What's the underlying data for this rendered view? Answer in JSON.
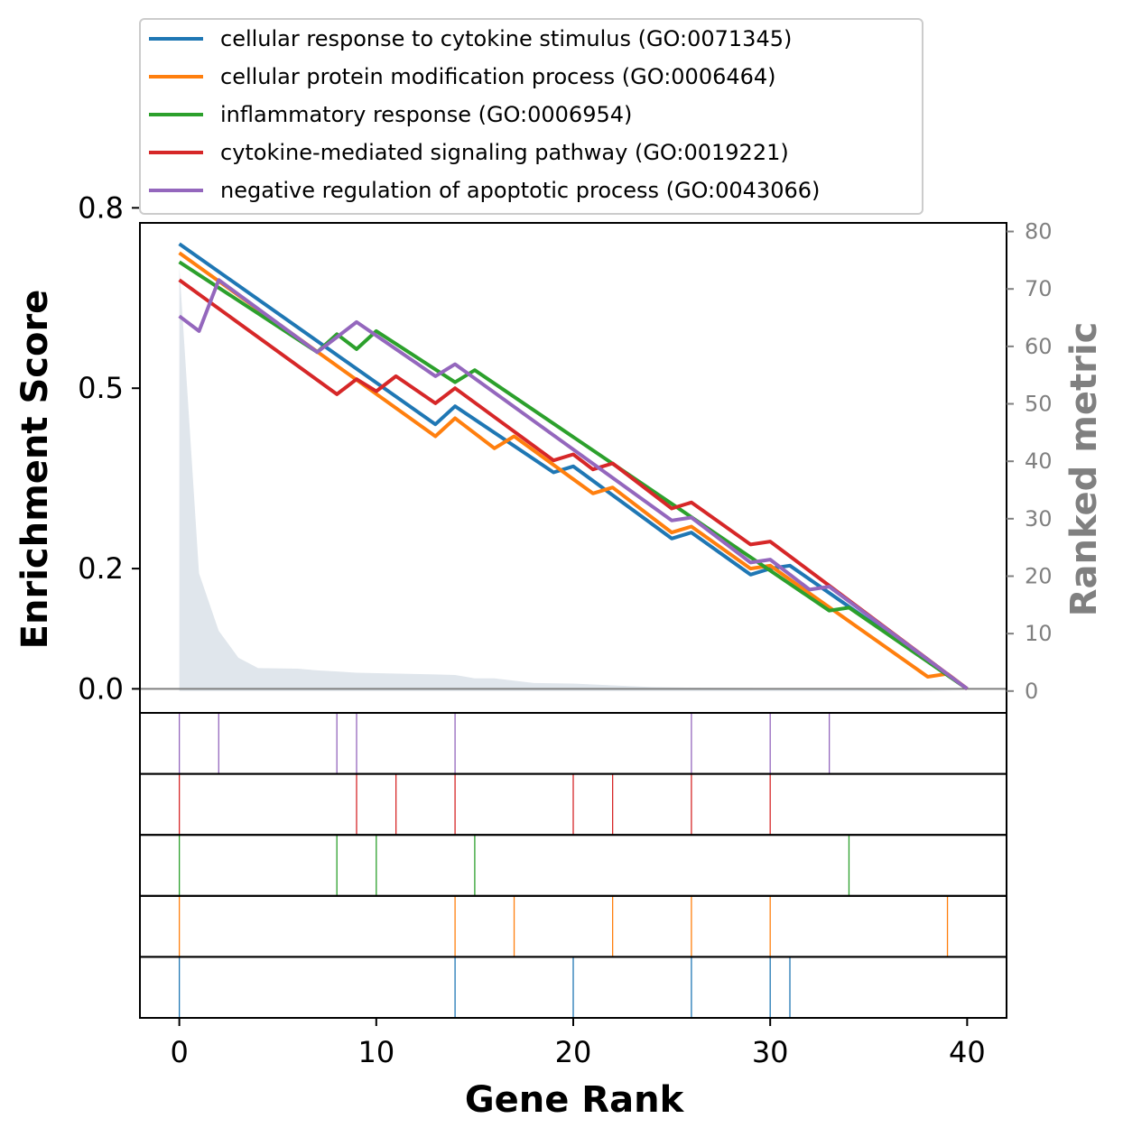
{
  "chart_data": {
    "type": "line",
    "xlabel": "Gene Rank",
    "ylabel": "Enrichment Score",
    "y2label": "Ranked metric",
    "xlim": [
      -2,
      42
    ],
    "ylim": [
      -0.04,
      0.775
    ],
    "y2lim": [
      -3.8,
      81.5
    ],
    "x_ticks": [
      0,
      10,
      20,
      30,
      40
    ],
    "y_ticks": [
      0.0,
      0.2,
      0.5,
      0.8
    ],
    "y_tick_labels": [
      "0.0",
      "0.2",
      "0.5",
      "0.8"
    ],
    "y2_ticks": [
      0,
      10,
      20,
      30,
      40,
      50,
      60,
      70,
      80
    ],
    "legend_position": "above plot",
    "grid": false,
    "series": [
      {
        "name": "cellular response to cytokine stimulus (GO:0071345)",
        "color": "#1f77b4",
        "hits": [
          0,
          14,
          20,
          26,
          30,
          31
        ],
        "es": [
          [
            0,
            0.74
          ],
          [
            13,
            0.44
          ],
          [
            14,
            0.47
          ],
          [
            19,
            0.36
          ],
          [
            20,
            0.37
          ],
          [
            25,
            0.25
          ],
          [
            26,
            0.26
          ],
          [
            29,
            0.19
          ],
          [
            30,
            0.2
          ],
          [
            31,
            0.205
          ],
          [
            40,
            0.0
          ]
        ]
      },
      {
        "name": "cellular protein modification process (GO:0006464)",
        "color": "#ff7f0e",
        "hits": [
          0,
          14,
          17,
          22,
          26,
          30,
          39
        ],
        "es": [
          [
            0,
            0.725
          ],
          [
            13,
            0.42
          ],
          [
            14,
            0.45
          ],
          [
            16,
            0.4
          ],
          [
            17,
            0.42
          ],
          [
            21,
            0.325
          ],
          [
            22,
            0.335
          ],
          [
            25,
            0.26
          ],
          [
            26,
            0.27
          ],
          [
            29,
            0.2
          ],
          [
            30,
            0.205
          ],
          [
            38,
            0.02
          ],
          [
            39,
            0.025
          ],
          [
            40,
            0.0
          ]
        ]
      },
      {
        "name": "inflammatory response (GO:0006954)",
        "color": "#2ca02c",
        "hits": [
          0,
          8,
          10,
          15,
          34
        ],
        "es": [
          [
            0,
            0.71
          ],
          [
            7,
            0.56
          ],
          [
            8,
            0.59
          ],
          [
            9,
            0.565
          ],
          [
            10,
            0.595
          ],
          [
            14,
            0.51
          ],
          [
            15,
            0.53
          ],
          [
            33,
            0.13
          ],
          [
            34,
            0.135
          ],
          [
            40,
            0.0
          ]
        ]
      },
      {
        "name": "cytokine-mediated signaling pathway (GO:0019221)",
        "color": "#d62728",
        "hits": [
          0,
          9,
          11,
          14,
          20,
          22,
          26,
          30
        ],
        "es": [
          [
            0,
            0.68
          ],
          [
            8,
            0.49
          ],
          [
            9,
            0.515
          ],
          [
            10,
            0.495
          ],
          [
            11,
            0.52
          ],
          [
            13,
            0.475
          ],
          [
            14,
            0.5
          ],
          [
            19,
            0.38
          ],
          [
            20,
            0.39
          ],
          [
            21,
            0.365
          ],
          [
            22,
            0.375
          ],
          [
            25,
            0.3
          ],
          [
            26,
            0.31
          ],
          [
            29,
            0.24
          ],
          [
            30,
            0.245
          ],
          [
            40,
            0.0
          ]
        ]
      },
      {
        "name": "negative regulation of apoptotic process (GO:0043066)",
        "color": "#9467bd",
        "hits": [
          0,
          2,
          8,
          9,
          14,
          26,
          30,
          33
        ],
        "es": [
          [
            0,
            0.62
          ],
          [
            1,
            0.595
          ],
          [
            2,
            0.68
          ],
          [
            7,
            0.56
          ],
          [
            8,
            0.585
          ],
          [
            9,
            0.61
          ],
          [
            13,
            0.52
          ],
          [
            14,
            0.54
          ],
          [
            25,
            0.28
          ],
          [
            26,
            0.285
          ],
          [
            29,
            0.21
          ],
          [
            30,
            0.215
          ],
          [
            32,
            0.165
          ],
          [
            33,
            0.17
          ],
          [
            40,
            0.0
          ]
        ]
      }
    ],
    "ranked_metric": {
      "color": "#e0e6ec",
      "points": [
        [
          0,
          74
        ],
        [
          1,
          20.5
        ],
        [
          2,
          10.5
        ],
        [
          3,
          5.8
        ],
        [
          4,
          4.0
        ],
        [
          6,
          3.9
        ],
        [
          7,
          3.6
        ],
        [
          9,
          3.2
        ],
        [
          13,
          2.9
        ],
        [
          14,
          2.8
        ],
        [
          15,
          2.2
        ],
        [
          16,
          2.2
        ],
        [
          18,
          1.4
        ],
        [
          20,
          1.3
        ],
        [
          22,
          1.0
        ],
        [
          24,
          0.7
        ],
        [
          26,
          0.6
        ],
        [
          30,
          0.5
        ],
        [
          34,
          0.4
        ],
        [
          40,
          0.0
        ]
      ]
    }
  }
}
